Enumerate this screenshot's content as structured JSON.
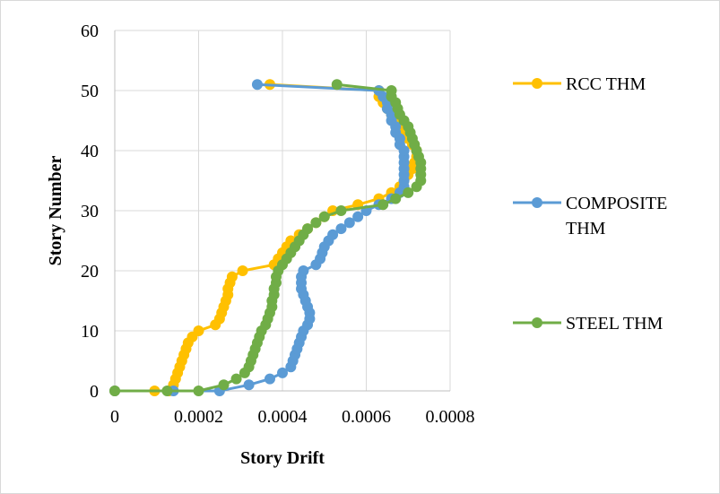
{
  "chart_data": {
    "type": "scatter",
    "title": "",
    "xlabel": "Story Drift",
    "ylabel": "Story Number",
    "xlim": [
      0,
      0.0008
    ],
    "ylim": [
      0,
      60
    ],
    "xticks": [
      "0",
      "0.0002",
      "0.0004",
      "0.0006",
      "0.0008"
    ],
    "yticks": [
      "0",
      "10",
      "20",
      "30",
      "40",
      "50",
      "60"
    ],
    "grid": true,
    "legend_position": "right",
    "series": [
      {
        "name": "RCC THM",
        "color": "#FFC000",
        "points": [
          [
            0,
            0
          ],
          [
            9.5e-05,
            0
          ],
          [
            0.00013,
            0
          ],
          [
            0.00014,
            1
          ],
          [
            0.000145,
            2
          ],
          [
            0.00015,
            3
          ],
          [
            0.000155,
            4
          ],
          [
            0.00016,
            5
          ],
          [
            0.000165,
            6
          ],
          [
            0.00017,
            7
          ],
          [
            0.000175,
            8
          ],
          [
            0.000185,
            9
          ],
          [
            0.0002,
            10
          ],
          [
            0.00024,
            11
          ],
          [
            0.00025,
            12
          ],
          [
            0.000255,
            13
          ],
          [
            0.00026,
            14
          ],
          [
            0.000265,
            15
          ],
          [
            0.00027,
            16
          ],
          [
            0.00027,
            17
          ],
          [
            0.000275,
            18
          ],
          [
            0.00028,
            19
          ],
          [
            0.000305,
            20
          ],
          [
            0.00038,
            21
          ],
          [
            0.00039,
            22
          ],
          [
            0.0004,
            23
          ],
          [
            0.00041,
            24
          ],
          [
            0.00042,
            25
          ],
          [
            0.00044,
            26
          ],
          [
            0.00046,
            27
          ],
          [
            0.00048,
            28
          ],
          [
            0.0005,
            29
          ],
          [
            0.00052,
            30
          ],
          [
            0.00058,
            31
          ],
          [
            0.00063,
            32
          ],
          [
            0.00066,
            33
          ],
          [
            0.00068,
            34
          ],
          [
            0.00069,
            35
          ],
          [
            0.0007,
            36
          ],
          [
            0.00071,
            37
          ],
          [
            0.000715,
            38
          ],
          [
            0.00072,
            39
          ],
          [
            0.00072,
            40
          ],
          [
            0.00071,
            41
          ],
          [
            0.0007,
            42
          ],
          [
            0.00069,
            43
          ],
          [
            0.00068,
            44
          ],
          [
            0.00067,
            45
          ],
          [
            0.00066,
            46
          ],
          [
            0.00065,
            47
          ],
          [
            0.00064,
            48
          ],
          [
            0.00063,
            49
          ],
          [
            0.00063,
            50
          ],
          [
            0.00037,
            51
          ]
        ]
      },
      {
        "name": "COMPOSITE THM",
        "color": "#5B9BD5",
        "points": [
          [
            0,
            0
          ],
          [
            0.00014,
            0
          ],
          [
            0.00025,
            0
          ],
          [
            0.00032,
            1
          ],
          [
            0.00037,
            2
          ],
          [
            0.0004,
            3
          ],
          [
            0.00042,
            4
          ],
          [
            0.000425,
            5
          ],
          [
            0.00043,
            6
          ],
          [
            0.000435,
            7
          ],
          [
            0.00044,
            8
          ],
          [
            0.000445,
            9
          ],
          [
            0.00045,
            10
          ],
          [
            0.00046,
            11
          ],
          [
            0.000465,
            12
          ],
          [
            0.000465,
            13
          ],
          [
            0.00046,
            14
          ],
          [
            0.000455,
            15
          ],
          [
            0.00045,
            16
          ],
          [
            0.000445,
            17
          ],
          [
            0.000445,
            18
          ],
          [
            0.000445,
            19
          ],
          [
            0.00045,
            20
          ],
          [
            0.00048,
            21
          ],
          [
            0.00049,
            22
          ],
          [
            0.000495,
            23
          ],
          [
            0.0005,
            24
          ],
          [
            0.00051,
            25
          ],
          [
            0.00052,
            26
          ],
          [
            0.00054,
            27
          ],
          [
            0.00056,
            28
          ],
          [
            0.00058,
            29
          ],
          [
            0.0006,
            30
          ],
          [
            0.00063,
            31
          ],
          [
            0.00066,
            32
          ],
          [
            0.00068,
            33
          ],
          [
            0.00069,
            34
          ],
          [
            0.00069,
            35
          ],
          [
            0.00069,
            36
          ],
          [
            0.00069,
            37
          ],
          [
            0.00069,
            38
          ],
          [
            0.00069,
            39
          ],
          [
            0.00069,
            40
          ],
          [
            0.00068,
            41
          ],
          [
            0.00068,
            42
          ],
          [
            0.00067,
            43
          ],
          [
            0.00067,
            44
          ],
          [
            0.00066,
            45
          ],
          [
            0.00066,
            46
          ],
          [
            0.00065,
            47
          ],
          [
            0.00065,
            48
          ],
          [
            0.00064,
            49
          ],
          [
            0.00063,
            50
          ],
          [
            0.00034,
            51
          ]
        ]
      },
      {
        "name": "STEEL THM",
        "color": "#70AD47",
        "points": [
          [
            0,
            0
          ],
          [
            0.000125,
            0
          ],
          [
            0.0002,
            0
          ],
          [
            0.00026,
            1
          ],
          [
            0.00029,
            2
          ],
          [
            0.00031,
            3
          ],
          [
            0.00032,
            4
          ],
          [
            0.000325,
            5
          ],
          [
            0.00033,
            6
          ],
          [
            0.000335,
            7
          ],
          [
            0.00034,
            8
          ],
          [
            0.000345,
            9
          ],
          [
            0.00035,
            10
          ],
          [
            0.00036,
            11
          ],
          [
            0.000365,
            12
          ],
          [
            0.00037,
            13
          ],
          [
            0.000375,
            14
          ],
          [
            0.000375,
            15
          ],
          [
            0.00038,
            16
          ],
          [
            0.00038,
            17
          ],
          [
            0.000385,
            18
          ],
          [
            0.000385,
            19
          ],
          [
            0.00039,
            20
          ],
          [
            0.0004,
            21
          ],
          [
            0.00041,
            22
          ],
          [
            0.00042,
            23
          ],
          [
            0.00043,
            24
          ],
          [
            0.00044,
            25
          ],
          [
            0.00045,
            26
          ],
          [
            0.00046,
            27
          ],
          [
            0.00048,
            28
          ],
          [
            0.0005,
            29
          ],
          [
            0.00054,
            30
          ],
          [
            0.00064,
            31
          ],
          [
            0.00067,
            32
          ],
          [
            0.0007,
            33
          ],
          [
            0.00072,
            34
          ],
          [
            0.00073,
            35
          ],
          [
            0.00073,
            36
          ],
          [
            0.00073,
            37
          ],
          [
            0.00073,
            38
          ],
          [
            0.000725,
            39
          ],
          [
            0.00072,
            40
          ],
          [
            0.000715,
            41
          ],
          [
            0.00071,
            42
          ],
          [
            0.000705,
            43
          ],
          [
            0.0007,
            44
          ],
          [
            0.00069,
            45
          ],
          [
            0.00068,
            46
          ],
          [
            0.000675,
            47
          ],
          [
            0.00067,
            48
          ],
          [
            0.00066,
            49
          ],
          [
            0.00066,
            50
          ],
          [
            0.00053,
            51
          ]
        ]
      }
    ],
    "legend": [
      {
        "lines": [
          "RCC THM"
        ]
      },
      {
        "lines": [
          "COMPOSITE",
          "THM"
        ]
      },
      {
        "lines": [
          "STEEL THM"
        ]
      }
    ]
  }
}
